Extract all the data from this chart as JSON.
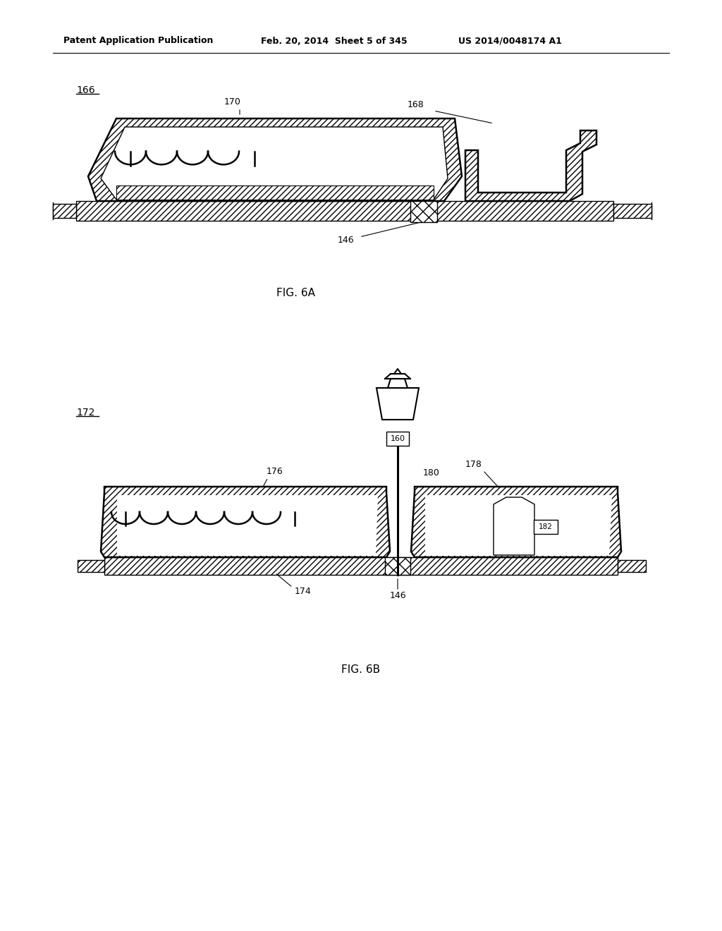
{
  "header_left": "Patent Application Publication",
  "header_mid": "Feb. 20, 2014  Sheet 5 of 345",
  "header_right": "US 2014/0048174 A1",
  "fig6a_label": "FIG. 6A",
  "fig6b_label": "FIG. 6B",
  "label_166": "166",
  "label_172": "172",
  "label_170": "170",
  "label_168": "168",
  "label_146": "146",
  "label_176": "176",
  "label_174": "174",
  "label_160": "160",
  "label_180": "180",
  "label_178": "178",
  "label_182": "182",
  "bg_color": "#ffffff",
  "line_color": "#000000"
}
